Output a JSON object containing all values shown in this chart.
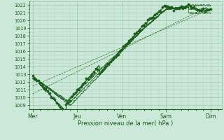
{
  "title": "",
  "xlabel": "Pression niveau de la mer( hPa )",
  "ylabel": "",
  "background_color": "#cce8d8",
  "grid_color_major": "#90c0a0",
  "grid_color_minor": "#aad4bc",
  "line_color": "#1a5c1a",
  "ylim": [
    1008.5,
    1022.5
  ],
  "yticks": [
    1009,
    1010,
    1011,
    1012,
    1013,
    1014,
    1015,
    1016,
    1017,
    1018,
    1019,
    1020,
    1021,
    1022
  ],
  "xtick_labels": [
    "Mer",
    "Jeu",
    "Ven",
    "Sam",
    "Dim"
  ],
  "xtick_positions": [
    0,
    1,
    2,
    3,
    4
  ],
  "xlim": [
    -0.08,
    4.25
  ]
}
